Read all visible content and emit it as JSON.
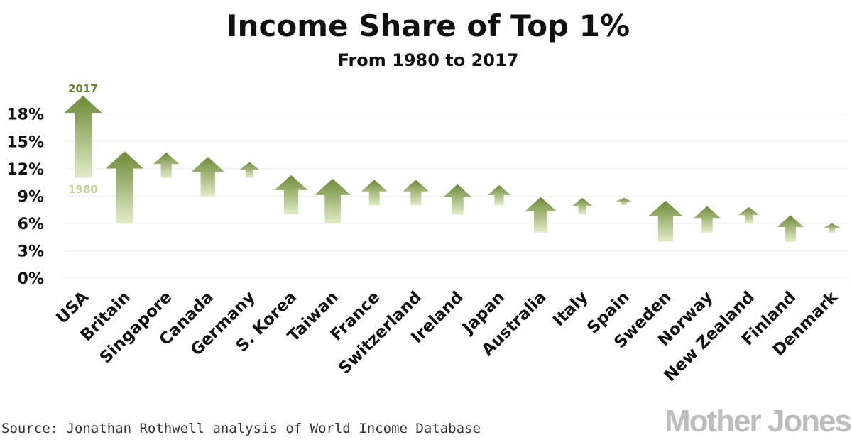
{
  "chart_data": {
    "type": "arrow",
    "title": "Income Share of Top 1%",
    "subtitle": "From 1980 to 2017",
    "ylim": [
      0,
      19
    ],
    "yticks": [
      {
        "value": 0,
        "label": "0%"
      },
      {
        "value": 3,
        "label": "3%"
      },
      {
        "value": 6,
        "label": "6%"
      },
      {
        "value": 9,
        "label": "9%"
      },
      {
        "value": 12,
        "label": "12%"
      },
      {
        "value": 15,
        "label": "15%"
      },
      {
        "value": 18,
        "label": "18%"
      }
    ],
    "series": [
      {
        "name": "1980",
        "label": "1980"
      },
      {
        "name": "2017",
        "label": "2017"
      }
    ],
    "categories": [
      "USA",
      "Britain",
      "Singapore",
      "Canada",
      "Germany",
      "S. Korea",
      "Taiwan",
      "France",
      "Switzerland",
      "Ireland",
      "Japan",
      "Australia",
      "Italy",
      "Spain",
      "Sweden",
      "Norway",
      "New Zealand",
      "Finland",
      "Denmark"
    ],
    "values_1980": [
      11.0,
      6.0,
      11.0,
      9.0,
      11.0,
      7.0,
      6.0,
      8.0,
      8.0,
      7.0,
      8.0,
      5.0,
      7.0,
      8.0,
      4.0,
      5.0,
      6.0,
      4.0,
      5.0
    ],
    "values_2017": [
      20.0,
      13.9,
      13.8,
      13.3,
      12.7,
      11.3,
      10.9,
      10.8,
      10.8,
      10.3,
      10.2,
      8.9,
      8.8,
      8.8,
      8.5,
      7.9,
      7.8,
      6.9,
      6.0
    ],
    "annotations": {
      "top": "2017",
      "bottom": "1980"
    }
  },
  "source": "Source: Jonathan Rothwell analysis of World Income Database",
  "brand": "Mother Jones",
  "colors": {
    "arrow_top": "#6b8a35",
    "arrow_bottom": "#e2ecc8"
  }
}
